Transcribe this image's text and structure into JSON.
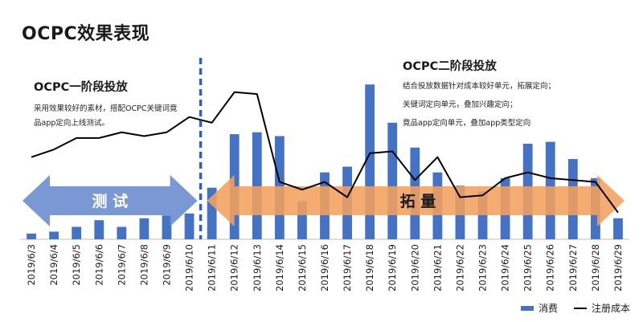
{
  "page": {
    "title": "OCPC效果表现"
  },
  "phase1": {
    "title": "OCPC一阶段投放",
    "lines": [
      "采用效果较好的素材，搭配OCPC关键词竟",
      "品app定向上线测试。"
    ]
  },
  "phase2": {
    "title": "OCPC二阶段投放",
    "lines": [
      "结合投放数据针对成本较好单元，拓展定向；",
      "关键词定向单元，叠加兴趣定向；",
      "竟品app定向单元，叠加app类型定向"
    ]
  },
  "arrows": {
    "test_label": "测 试",
    "scale_label": "拓 量"
  },
  "colors": {
    "bar": "#4472c4",
    "line": "#000000",
    "test_arrow": "#6f8fcf",
    "scale_arrow": "#f4a15c",
    "divider": "#2f5fbf"
  },
  "chart_data": {
    "type": "bar+line",
    "categories": [
      "2019/6/3",
      "2019/6/4",
      "2019/6/5",
      "2019/6/6",
      "2019/6/7",
      "2019/6/8",
      "2019/6/9",
      "2019/6/10",
      "2019/6/11",
      "2019/6/12",
      "2019/6/13",
      "2019/6/14",
      "2019/6/15",
      "2019/6/16",
      "2019/6/17",
      "2019/6/18",
      "2019/6/19",
      "2019/6/20",
      "2019/6/21",
      "2019/6/22",
      "2019/6/23",
      "2019/6/24",
      "2019/6/25",
      "2019/6/26",
      "2019/6/27",
      "2019/6/28",
      "2019/6/29"
    ],
    "series": [
      {
        "name": "消费",
        "type": "bar",
        "values": [
          3,
          4,
          6.5,
          10,
          6.5,
          11,
          12.5,
          13.5,
          27,
          55,
          56,
          54,
          20,
          35,
          38,
          81,
          61,
          48,
          35,
          28,
          25,
          32,
          50,
          51,
          42,
          32,
          11
        ]
      },
      {
        "name": "注册成本",
        "type": "line",
        "values": [
          43,
          47,
          53,
          53,
          56,
          54,
          56,
          64,
          61,
          77,
          76,
          30,
          26,
          30,
          22,
          45,
          46,
          31,
          43,
          22,
          23,
          32,
          35,
          32,
          31,
          30,
          14
        ]
      }
    ],
    "divider_after": "2019/6/10",
    "ylim": [
      0,
      100
    ],
    "legend": [
      "消费",
      "注册成本"
    ],
    "legend_position": "bottom-right"
  }
}
